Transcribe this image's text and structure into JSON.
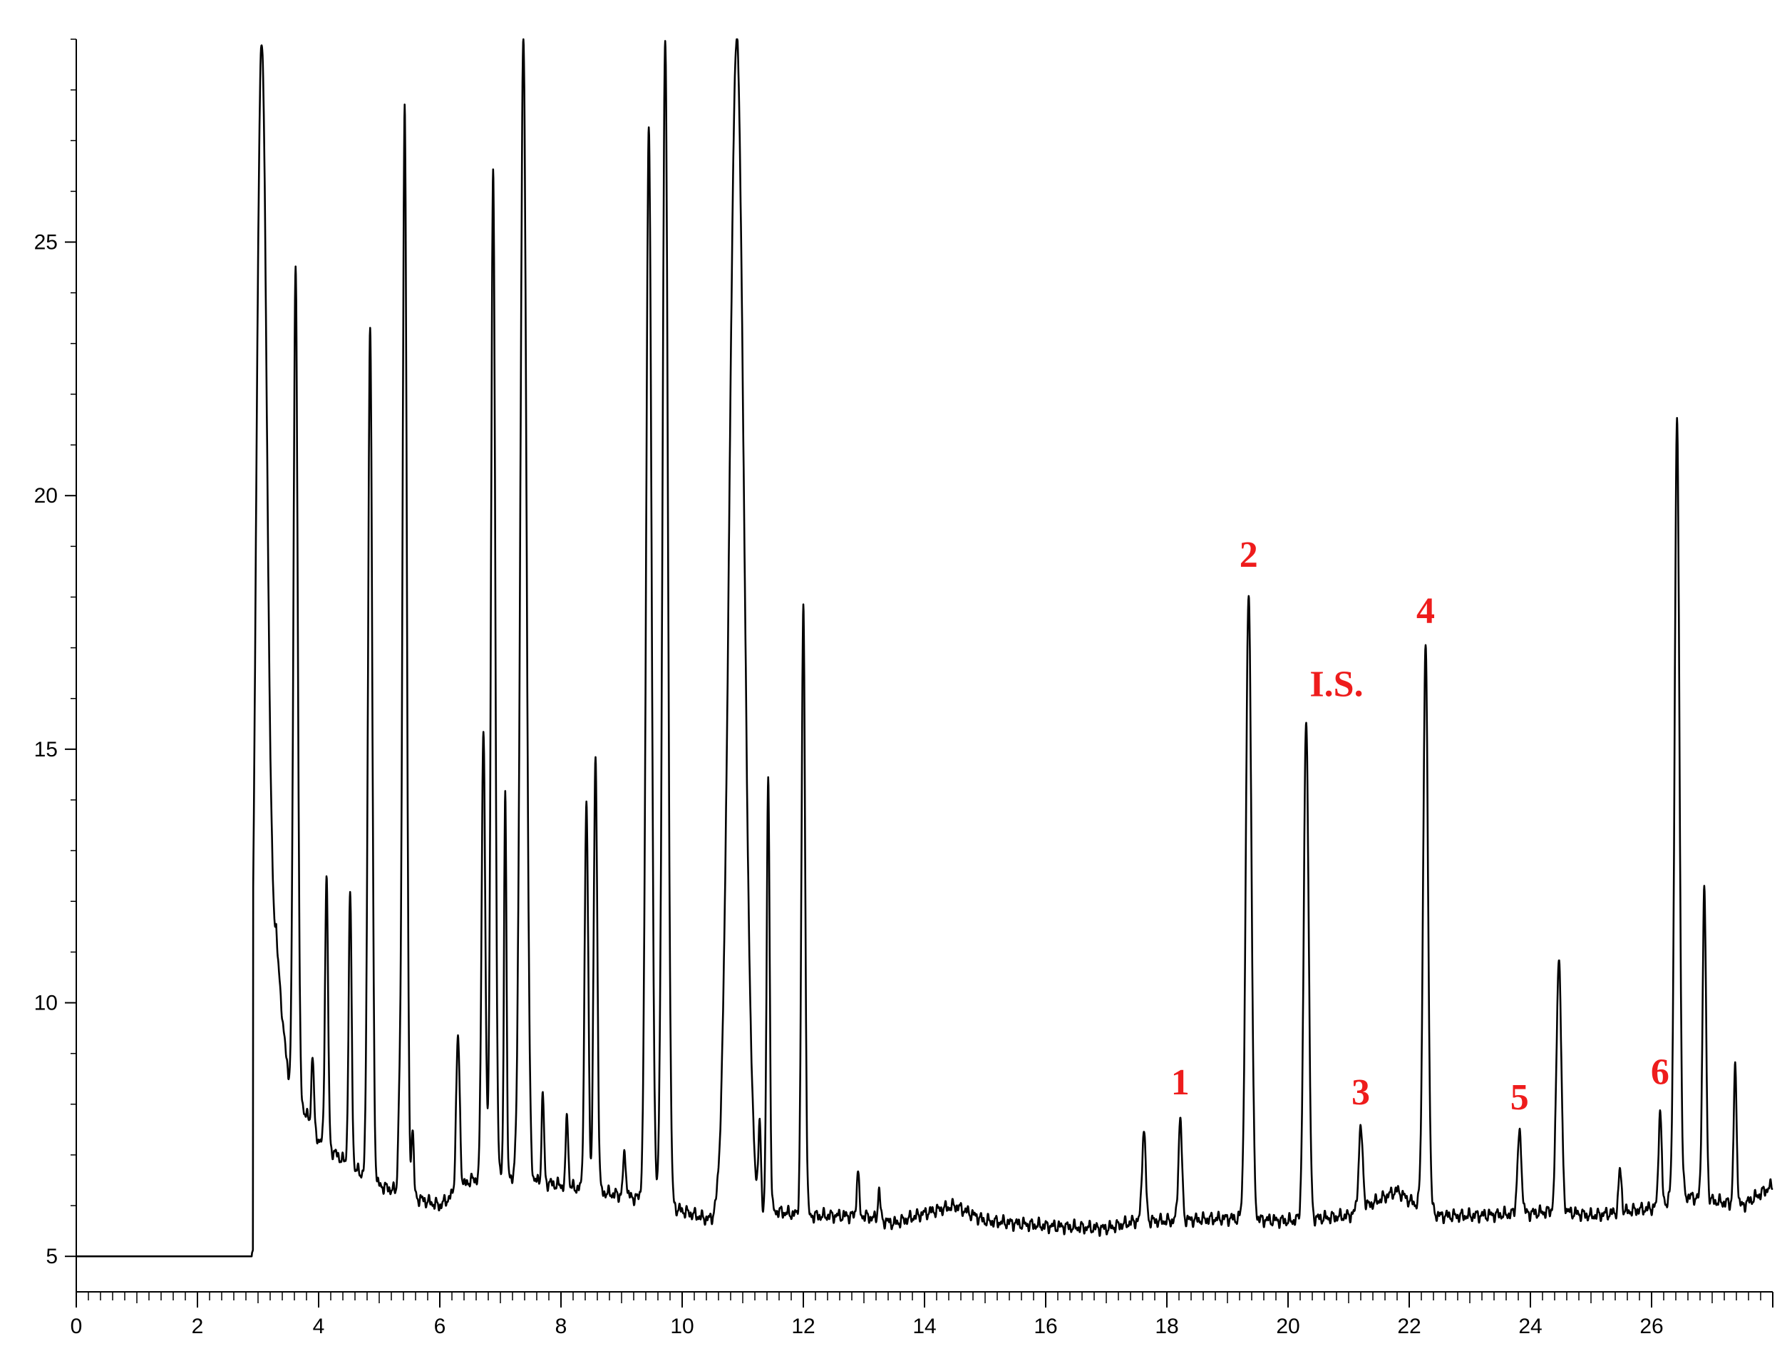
{
  "chart_data": {
    "type": "line",
    "title": "",
    "xlabel": "",
    "ylabel": "",
    "xlim": [
      0,
      28
    ],
    "ylim": [
      4.3,
      29
    ],
    "x_ticks": [
      0,
      2,
      4,
      6,
      8,
      10,
      12,
      14,
      16,
      18,
      20,
      22,
      24,
      26
    ],
    "x_minor_step": 0.2,
    "y_ticks": [
      5,
      10,
      15,
      20,
      25
    ],
    "grid": false,
    "legend": "none",
    "colors": {
      "trace": "#000000",
      "annotation": "#ee1c1c"
    },
    "baseline": [
      [
        0,
        5
      ],
      [
        2.9,
        5
      ],
      [
        2.95,
        5.6
      ],
      [
        3.3,
        11
      ],
      [
        3.5,
        8.5
      ],
      [
        4,
        7.3
      ],
      [
        4.5,
        6.8
      ],
      [
        5,
        6.4
      ],
      [
        5.5,
        6.2
      ],
      [
        6,
        6.0
      ],
      [
        6.5,
        6.5
      ],
      [
        7,
        6.6
      ],
      [
        7.5,
        6.5
      ],
      [
        8,
        6.4
      ],
      [
        8.5,
        6.3
      ],
      [
        9,
        6.2
      ],
      [
        9.5,
        6.1
      ],
      [
        10,
        5.9
      ],
      [
        10.5,
        5.7
      ],
      [
        11,
        6.0
      ],
      [
        11.5,
        5.9
      ],
      [
        12,
        5.8
      ],
      [
        13,
        5.8
      ],
      [
        13.5,
        5.65
      ],
      [
        14,
        5.85
      ],
      [
        14.5,
        6.0
      ],
      [
        15,
        5.7
      ],
      [
        16,
        5.6
      ],
      [
        17,
        5.55
      ],
      [
        17.5,
        5.7
      ],
      [
        18,
        5.7
      ],
      [
        19,
        5.75
      ],
      [
        20,
        5.7
      ],
      [
        21,
        5.8
      ],
      [
        21.8,
        6.3
      ],
      [
        22,
        6.1
      ],
      [
        22.5,
        5.8
      ],
      [
        23,
        5.8
      ],
      [
        24,
        5.85
      ],
      [
        24.5,
        5.9
      ],
      [
        25,
        5.8
      ],
      [
        26,
        5.95
      ],
      [
        26.5,
        6.2
      ],
      [
        27,
        6.1
      ],
      [
        27.5,
        6.0
      ],
      [
        28,
        6.4
      ]
    ],
    "peaks": [
      {
        "x": 3.06,
        "y": 29,
        "w": 0.09
      },
      {
        "x": 3.62,
        "y": 24.5,
        "w": 0.035
      },
      {
        "x": 3.9,
        "y": 9.0,
        "w": 0.02
      },
      {
        "x": 4.13,
        "y": 12.5,
        "w": 0.025
      },
      {
        "x": 4.52,
        "y": 12.1,
        "w": 0.025
      },
      {
        "x": 4.85,
        "y": 23.3,
        "w": 0.035
      },
      {
        "x": 5.33,
        "y": 7.7,
        "w": 0.02
      },
      {
        "x": 5.42,
        "y": 27.7,
        "w": 0.035
      },
      {
        "x": 5.55,
        "y": 7.5,
        "w": 0.02
      },
      {
        "x": 6.3,
        "y": 9.3,
        "w": 0.03
      },
      {
        "x": 6.72,
        "y": 15.4,
        "w": 0.03
      },
      {
        "x": 6.88,
        "y": 26.4,
        "w": 0.035
      },
      {
        "x": 7.08,
        "y": 14.3,
        "w": 0.02
      },
      {
        "x": 7.38,
        "y": 29,
        "w": 0.05
      },
      {
        "x": 7.7,
        "y": 8.2,
        "w": 0.02
      },
      {
        "x": 8.1,
        "y": 7.8,
        "w": 0.02
      },
      {
        "x": 8.42,
        "y": 13.9,
        "w": 0.03
      },
      {
        "x": 8.57,
        "y": 14.8,
        "w": 0.03
      },
      {
        "x": 9.05,
        "y": 7.0,
        "w": 0.025
      },
      {
        "x": 9.45,
        "y": 27.3,
        "w": 0.045
      },
      {
        "x": 9.72,
        "y": 29,
        "w": 0.045
      },
      {
        "x": 10.9,
        "y": 29,
        "w": 0.12
      },
      {
        "x": 11.28,
        "y": 7.5,
        "w": 0.02
      },
      {
        "x": 11.42,
        "y": 14.4,
        "w": 0.025
      },
      {
        "x": 12.0,
        "y": 17.8,
        "w": 0.03
      },
      {
        "x": 12.9,
        "y": 6.7,
        "w": 0.02
      },
      {
        "x": 13.25,
        "y": 6.3,
        "w": 0.02
      },
      {
        "x": 17.62,
        "y": 7.5,
        "w": 0.03
      },
      {
        "x": 18.22,
        "y": 7.7,
        "w": 0.03
      },
      {
        "x": 19.35,
        "y": 18.1,
        "w": 0.045
      },
      {
        "x": 20.3,
        "y": 15.6,
        "w": 0.04
      },
      {
        "x": 21.2,
        "y": 7.5,
        "w": 0.035
      },
      {
        "x": 22.27,
        "y": 17.0,
        "w": 0.04
      },
      {
        "x": 23.82,
        "y": 7.4,
        "w": 0.035
      },
      {
        "x": 24.47,
        "y": 10.9,
        "w": 0.04
      },
      {
        "x": 25.48,
        "y": 6.7,
        "w": 0.025
      },
      {
        "x": 26.14,
        "y": 7.9,
        "w": 0.025
      },
      {
        "x": 26.42,
        "y": 21.4,
        "w": 0.04
      },
      {
        "x": 26.87,
        "y": 12.2,
        "w": 0.03
      },
      {
        "x": 27.38,
        "y": 8.7,
        "w": 0.025
      }
    ],
    "annotations": [
      {
        "text": "1",
        "x": 18.22,
        "y": 8.0
      },
      {
        "text": "2",
        "x": 19.35,
        "y": 18.4
      },
      {
        "text": "I.S.",
        "x": 20.8,
        "y": 15.85
      },
      {
        "text": "3",
        "x": 21.2,
        "y": 7.8
      },
      {
        "text": "4",
        "x": 22.27,
        "y": 17.3
      },
      {
        "text": "5",
        "x": 23.82,
        "y": 7.7
      },
      {
        "text": "6",
        "x": 26.14,
        "y": 8.2
      }
    ]
  }
}
